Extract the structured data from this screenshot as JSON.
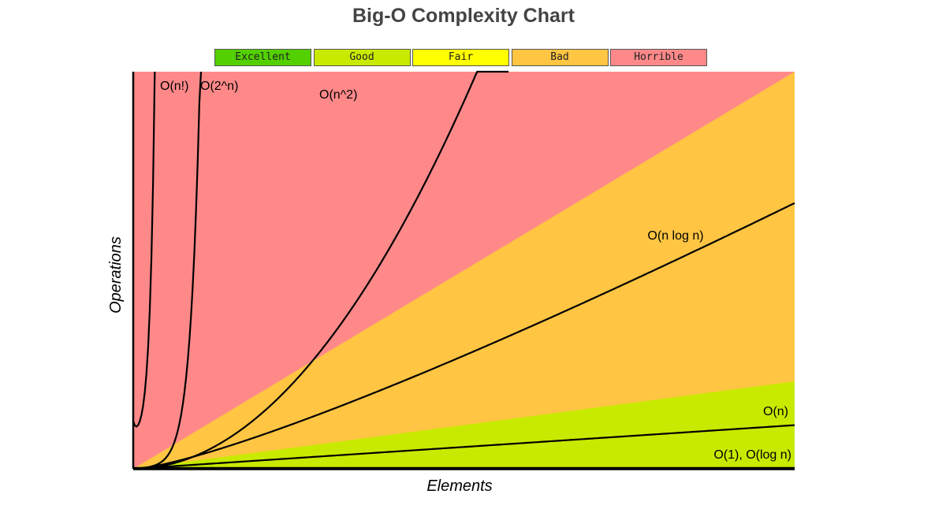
{
  "chart_data": {
    "type": "line",
    "title": "Big-O Complexity Chart",
    "xlabel": "Elements",
    "ylabel": "Operations",
    "legend": [
      {
        "label": "Excellent",
        "color": "#53d000"
      },
      {
        "label": "Good",
        "color": "#c8ea00"
      },
      {
        "label": "Fair",
        "color": "#ffff00"
      },
      {
        "label": "Bad",
        "color": "#ffc543"
      },
      {
        "label": "Horrible",
        "color": "#ff8989"
      }
    ],
    "xlim": [
      0,
      100
    ],
    "ylim": [
      0,
      1000
    ],
    "grid": false,
    "regions": [
      {
        "name": "Horrible",
        "color": "#ff8989"
      },
      {
        "name": "Bad",
        "color": "#ffc543"
      },
      {
        "name": "Good",
        "color": "#c8ea00"
      }
    ],
    "series": [
      {
        "name": "O(1), O(log n)",
        "func": "const"
      },
      {
        "name": "O(n)",
        "func": "linear"
      },
      {
        "name": "O(n log n)",
        "func": "nlogn"
      },
      {
        "name": "O(n^2)",
        "func": "quadratic"
      },
      {
        "name": "O(2^n)",
        "func": "exponential"
      },
      {
        "name": "O(n!)",
        "func": "factorial"
      }
    ]
  }
}
